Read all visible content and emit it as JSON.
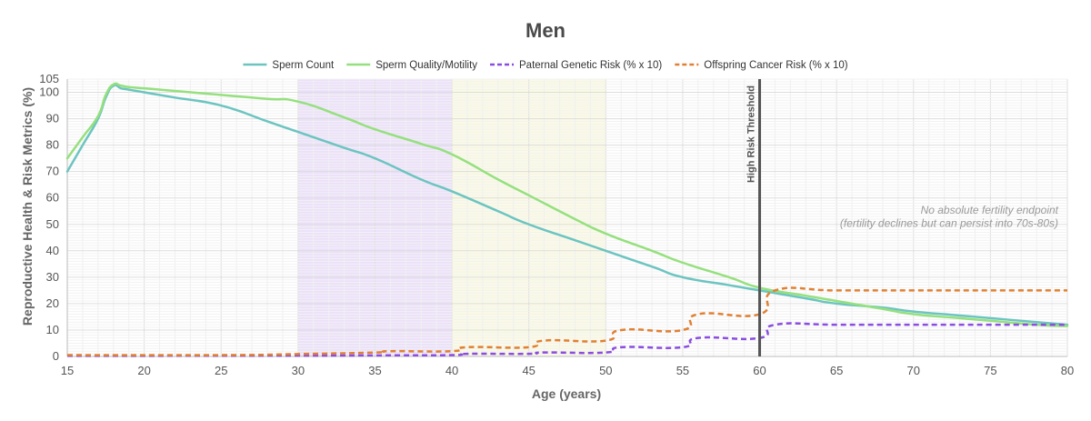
{
  "chart_data": {
    "type": "line",
    "title": "Men",
    "xlabel": "Age (years)",
    "ylabel": "Reproductive Health & Risk Metrics (%)",
    "xlim": [
      15,
      80
    ],
    "ylim": [
      0,
      105
    ],
    "x_ticks": [
      15,
      20,
      25,
      30,
      35,
      40,
      45,
      50,
      55,
      60,
      65,
      70,
      75,
      80
    ],
    "y_ticks": [
      0,
      10,
      20,
      30,
      40,
      50,
      60,
      70,
      80,
      90,
      100,
      105
    ],
    "grid": true,
    "legend_position": "top",
    "series": [
      {
        "name": "Sperm Count",
        "color": "#6cc4c0",
        "dashed": false,
        "points": [
          [
            15,
            70
          ],
          [
            16,
            80
          ],
          [
            17,
            90
          ],
          [
            17.5,
            98
          ],
          [
            18,
            102.5
          ],
          [
            18.5,
            101.5
          ],
          [
            19,
            101
          ],
          [
            20,
            100
          ],
          [
            22,
            98
          ],
          [
            25,
            95
          ],
          [
            28,
            89
          ],
          [
            30,
            85
          ],
          [
            33,
            79
          ],
          [
            35,
            75
          ],
          [
            38,
            67
          ],
          [
            40,
            62.5
          ],
          [
            43,
            55
          ],
          [
            45,
            50
          ],
          [
            48,
            44
          ],
          [
            50,
            40
          ],
          [
            53,
            34
          ],
          [
            55,
            30
          ],
          [
            58,
            27
          ],
          [
            60,
            25
          ],
          [
            63,
            22
          ],
          [
            65,
            20
          ],
          [
            68,
            18.5
          ],
          [
            70,
            17
          ],
          [
            73,
            15.5
          ],
          [
            75,
            14.5
          ],
          [
            78,
            13
          ],
          [
            80,
            12
          ]
        ]
      },
      {
        "name": "Sperm Quality/Motility",
        "color": "#95e07e",
        "dashed": false,
        "points": [
          [
            15,
            75
          ],
          [
            16,
            83
          ],
          [
            17,
            91
          ],
          [
            17.5,
            99
          ],
          [
            18,
            103
          ],
          [
            18.5,
            102.5
          ],
          [
            19,
            102
          ],
          [
            20,
            101.5
          ],
          [
            25,
            99
          ],
          [
            28,
            97.5
          ],
          [
            30,
            96.5
          ],
          [
            33,
            90.5
          ],
          [
            35,
            86
          ],
          [
            38,
            80.5
          ],
          [
            40,
            76.5
          ],
          [
            43,
            67
          ],
          [
            45,
            61
          ],
          [
            48,
            52
          ],
          [
            50,
            46.5
          ],
          [
            53,
            40
          ],
          [
            55,
            35.5
          ],
          [
            58,
            30
          ],
          [
            60,
            26
          ],
          [
            63,
            23
          ],
          [
            65,
            21
          ],
          [
            68,
            18
          ],
          [
            70,
            16
          ],
          [
            73,
            14.5
          ],
          [
            75,
            13.5
          ],
          [
            78,
            12
          ],
          [
            80,
            11.5
          ]
        ]
      },
      {
        "name": "Paternal Genetic Risk (% x 10)",
        "color": "#8a4de0",
        "dashed": true,
        "points": [
          [
            15,
            0.2
          ],
          [
            30,
            0.3
          ],
          [
            35,
            0.4
          ],
          [
            40,
            0.5
          ],
          [
            41,
            1
          ],
          [
            45,
            1
          ],
          [
            46,
            1.5
          ],
          [
            50,
            1.5
          ],
          [
            51,
            3.5
          ],
          [
            55,
            3.5
          ],
          [
            56,
            7
          ],
          [
            60,
            7
          ],
          [
            61,
            12
          ],
          [
            65,
            12
          ],
          [
            70,
            12
          ],
          [
            75,
            12
          ],
          [
            80,
            12
          ]
        ]
      },
      {
        "name": "Offspring Cancer Risk (% x 10)",
        "color": "#e08033",
        "dashed": true,
        "points": [
          [
            15,
            0.5
          ],
          [
            25,
            0.5
          ],
          [
            30,
            0.9
          ],
          [
            35,
            1.5
          ],
          [
            36,
            2
          ],
          [
            40,
            2
          ],
          [
            41,
            3.5
          ],
          [
            45,
            3.5
          ],
          [
            46,
            6
          ],
          [
            50,
            6
          ],
          [
            51,
            10
          ],
          [
            55,
            10
          ],
          [
            56,
            16
          ],
          [
            60,
            16
          ],
          [
            61,
            25
          ],
          [
            65,
            25
          ],
          [
            70,
            25
          ],
          [
            75,
            25
          ],
          [
            80,
            25
          ]
        ]
      }
    ],
    "shaded_regions": [
      {
        "x": [
          30,
          40
        ],
        "color": "#ece0fb"
      },
      {
        "x": [
          40,
          50
        ],
        "color": "#fbfae4"
      }
    ],
    "vertical_lines": [
      {
        "x": 60,
        "label": "High Risk Threshold",
        "color": "#555555"
      }
    ],
    "annotations": [
      {
        "text": "No absolute fertility endpoint",
        "x": 80,
        "y": 54
      },
      {
        "text": "(fertility declines but can persist into 70s-80s)",
        "x": 80,
        "y": 49
      }
    ]
  }
}
